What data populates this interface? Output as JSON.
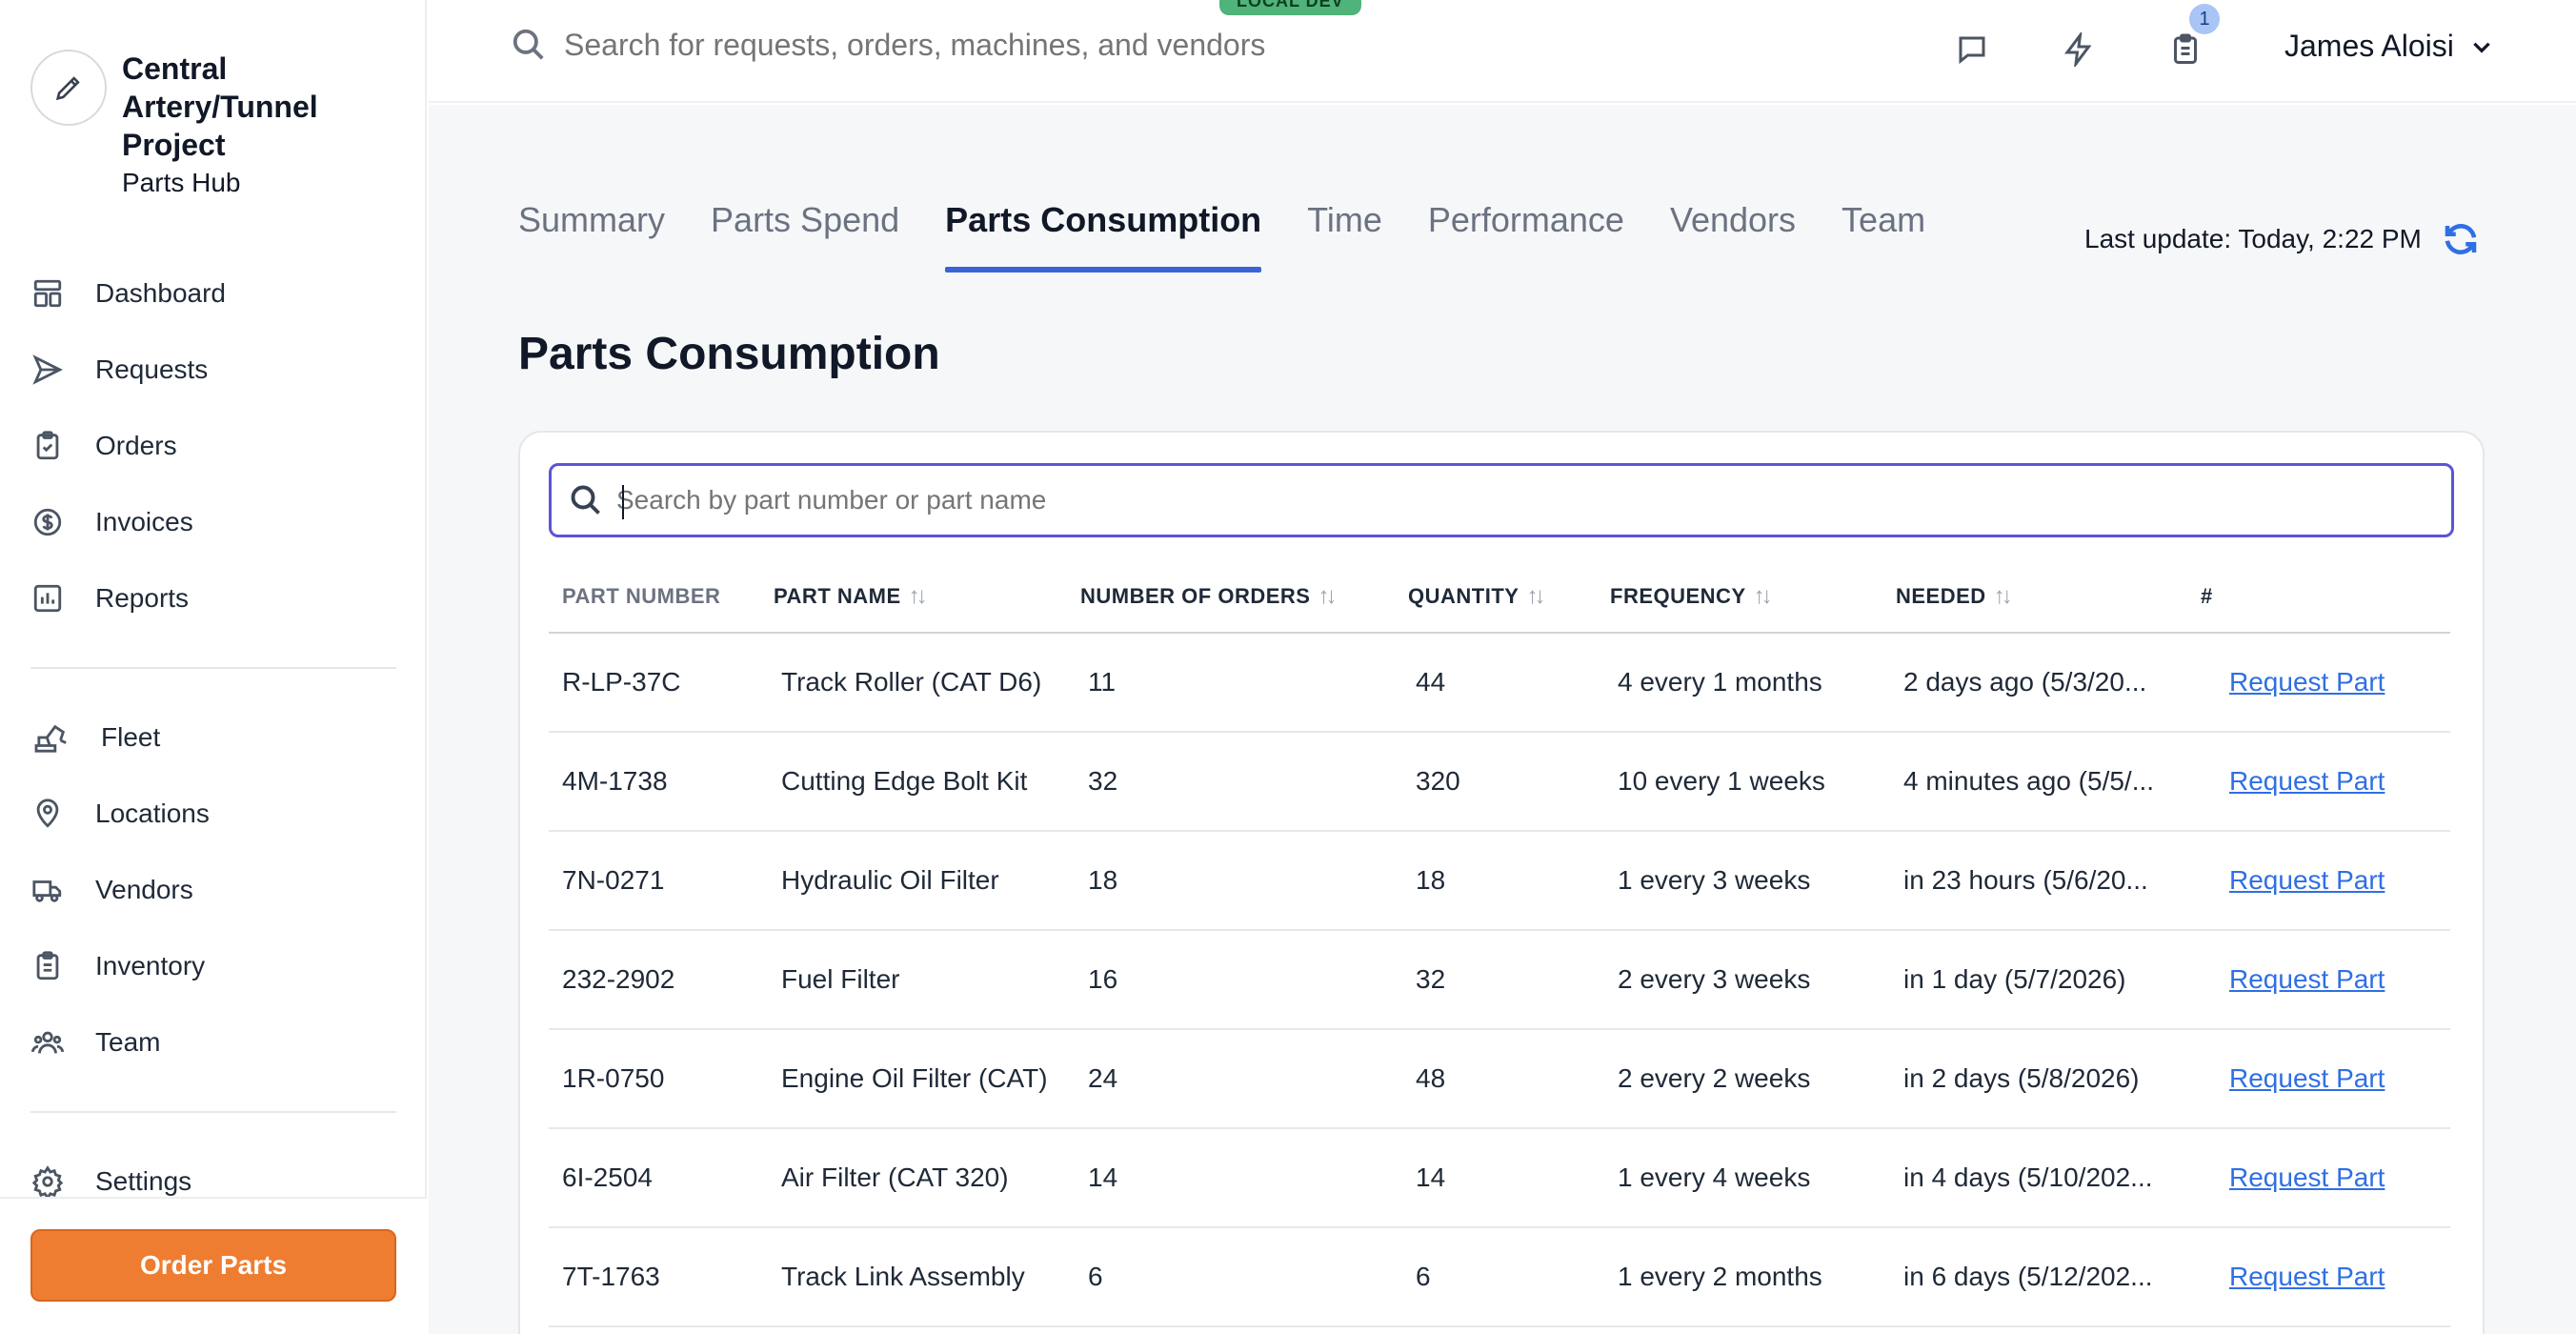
{
  "env_badge": "LOCAL DEV",
  "sidebar": {
    "brand_name": "Central Artery/Tunnel Project",
    "brand_sub": "Parts Hub",
    "primary_items": [
      {
        "label": "Dashboard",
        "icon": "dashboard-icon"
      },
      {
        "label": "Requests",
        "icon": "send-icon"
      },
      {
        "label": "Orders",
        "icon": "clipboard-check-icon"
      },
      {
        "label": "Invoices",
        "icon": "dollar-circle-icon"
      },
      {
        "label": "Reports",
        "icon": "bar-chart-icon"
      }
    ],
    "secondary_items": [
      {
        "label": "Fleet",
        "icon": "excavator-icon"
      },
      {
        "label": "Locations",
        "icon": "map-pin-icon"
      },
      {
        "label": "Vendors",
        "icon": "truck-icon"
      },
      {
        "label": "Inventory",
        "icon": "clipboard-list-icon"
      },
      {
        "label": "Team",
        "icon": "users-icon"
      }
    ],
    "settings_label": "Settings",
    "order_button": "Order Parts"
  },
  "topbar": {
    "search_placeholder": "Search for requests, orders, machines, and vendors",
    "notification_count": "1",
    "user_name": "James Aloisi"
  },
  "tabs": [
    "Summary",
    "Parts Spend",
    "Parts Consumption",
    "Time",
    "Performance",
    "Vendors",
    "Team"
  ],
  "active_tab": "Parts Consumption",
  "last_update": "Last update: Today, 2:22 PM",
  "page_title": "Parts Consumption",
  "table": {
    "search_placeholder": "Search by part number or part name",
    "columns": [
      "PART NUMBER",
      "PART NAME",
      "NUMBER OF ORDERS",
      "QUANTITY",
      "FREQUENCY",
      "NEEDED",
      "#"
    ],
    "rows": [
      {
        "part_number": "R-LP-37C",
        "part_name": "Track Roller (CAT D6)",
        "orders": "11",
        "quantity": "44",
        "frequency": "4 every 1 months",
        "needed": "2 days ago (5/3/20...",
        "action": "Request Part"
      },
      {
        "part_number": "4M-1738",
        "part_name": "Cutting Edge Bolt Kit",
        "orders": "32",
        "quantity": "320",
        "frequency": "10 every 1 weeks",
        "needed": "4 minutes ago (5/5/...",
        "action": "Request Part"
      },
      {
        "part_number": "7N-0271",
        "part_name": "Hydraulic Oil Filter",
        "orders": "18",
        "quantity": "18",
        "frequency": "1 every 3 weeks",
        "needed": "in 23 hours (5/6/20...",
        "action": "Request Part"
      },
      {
        "part_number": "232-2902",
        "part_name": "Fuel Filter",
        "orders": "16",
        "quantity": "32",
        "frequency": "2 every 3 weeks",
        "needed": "in 1 day (5/7/2026)",
        "action": "Request Part"
      },
      {
        "part_number": "1R-0750",
        "part_name": "Engine Oil Filter (CAT)",
        "orders": "24",
        "quantity": "48",
        "frequency": "2 every 2 weeks",
        "needed": "in 2 days (5/8/2026)",
        "action": "Request Part"
      },
      {
        "part_number": "6I-2504",
        "part_name": "Air Filter (CAT 320)",
        "orders": "14",
        "quantity": "14",
        "frequency": "1 every 4 weeks",
        "needed": "in 4 days (5/10/202...",
        "action": "Request Part"
      },
      {
        "part_number": "7T-1763",
        "part_name": "Track Link Assembly",
        "orders": "6",
        "quantity": "6",
        "frequency": "1 every 2 months",
        "needed": "in 6 days (5/12/202...",
        "action": "Request Part"
      }
    ]
  }
}
